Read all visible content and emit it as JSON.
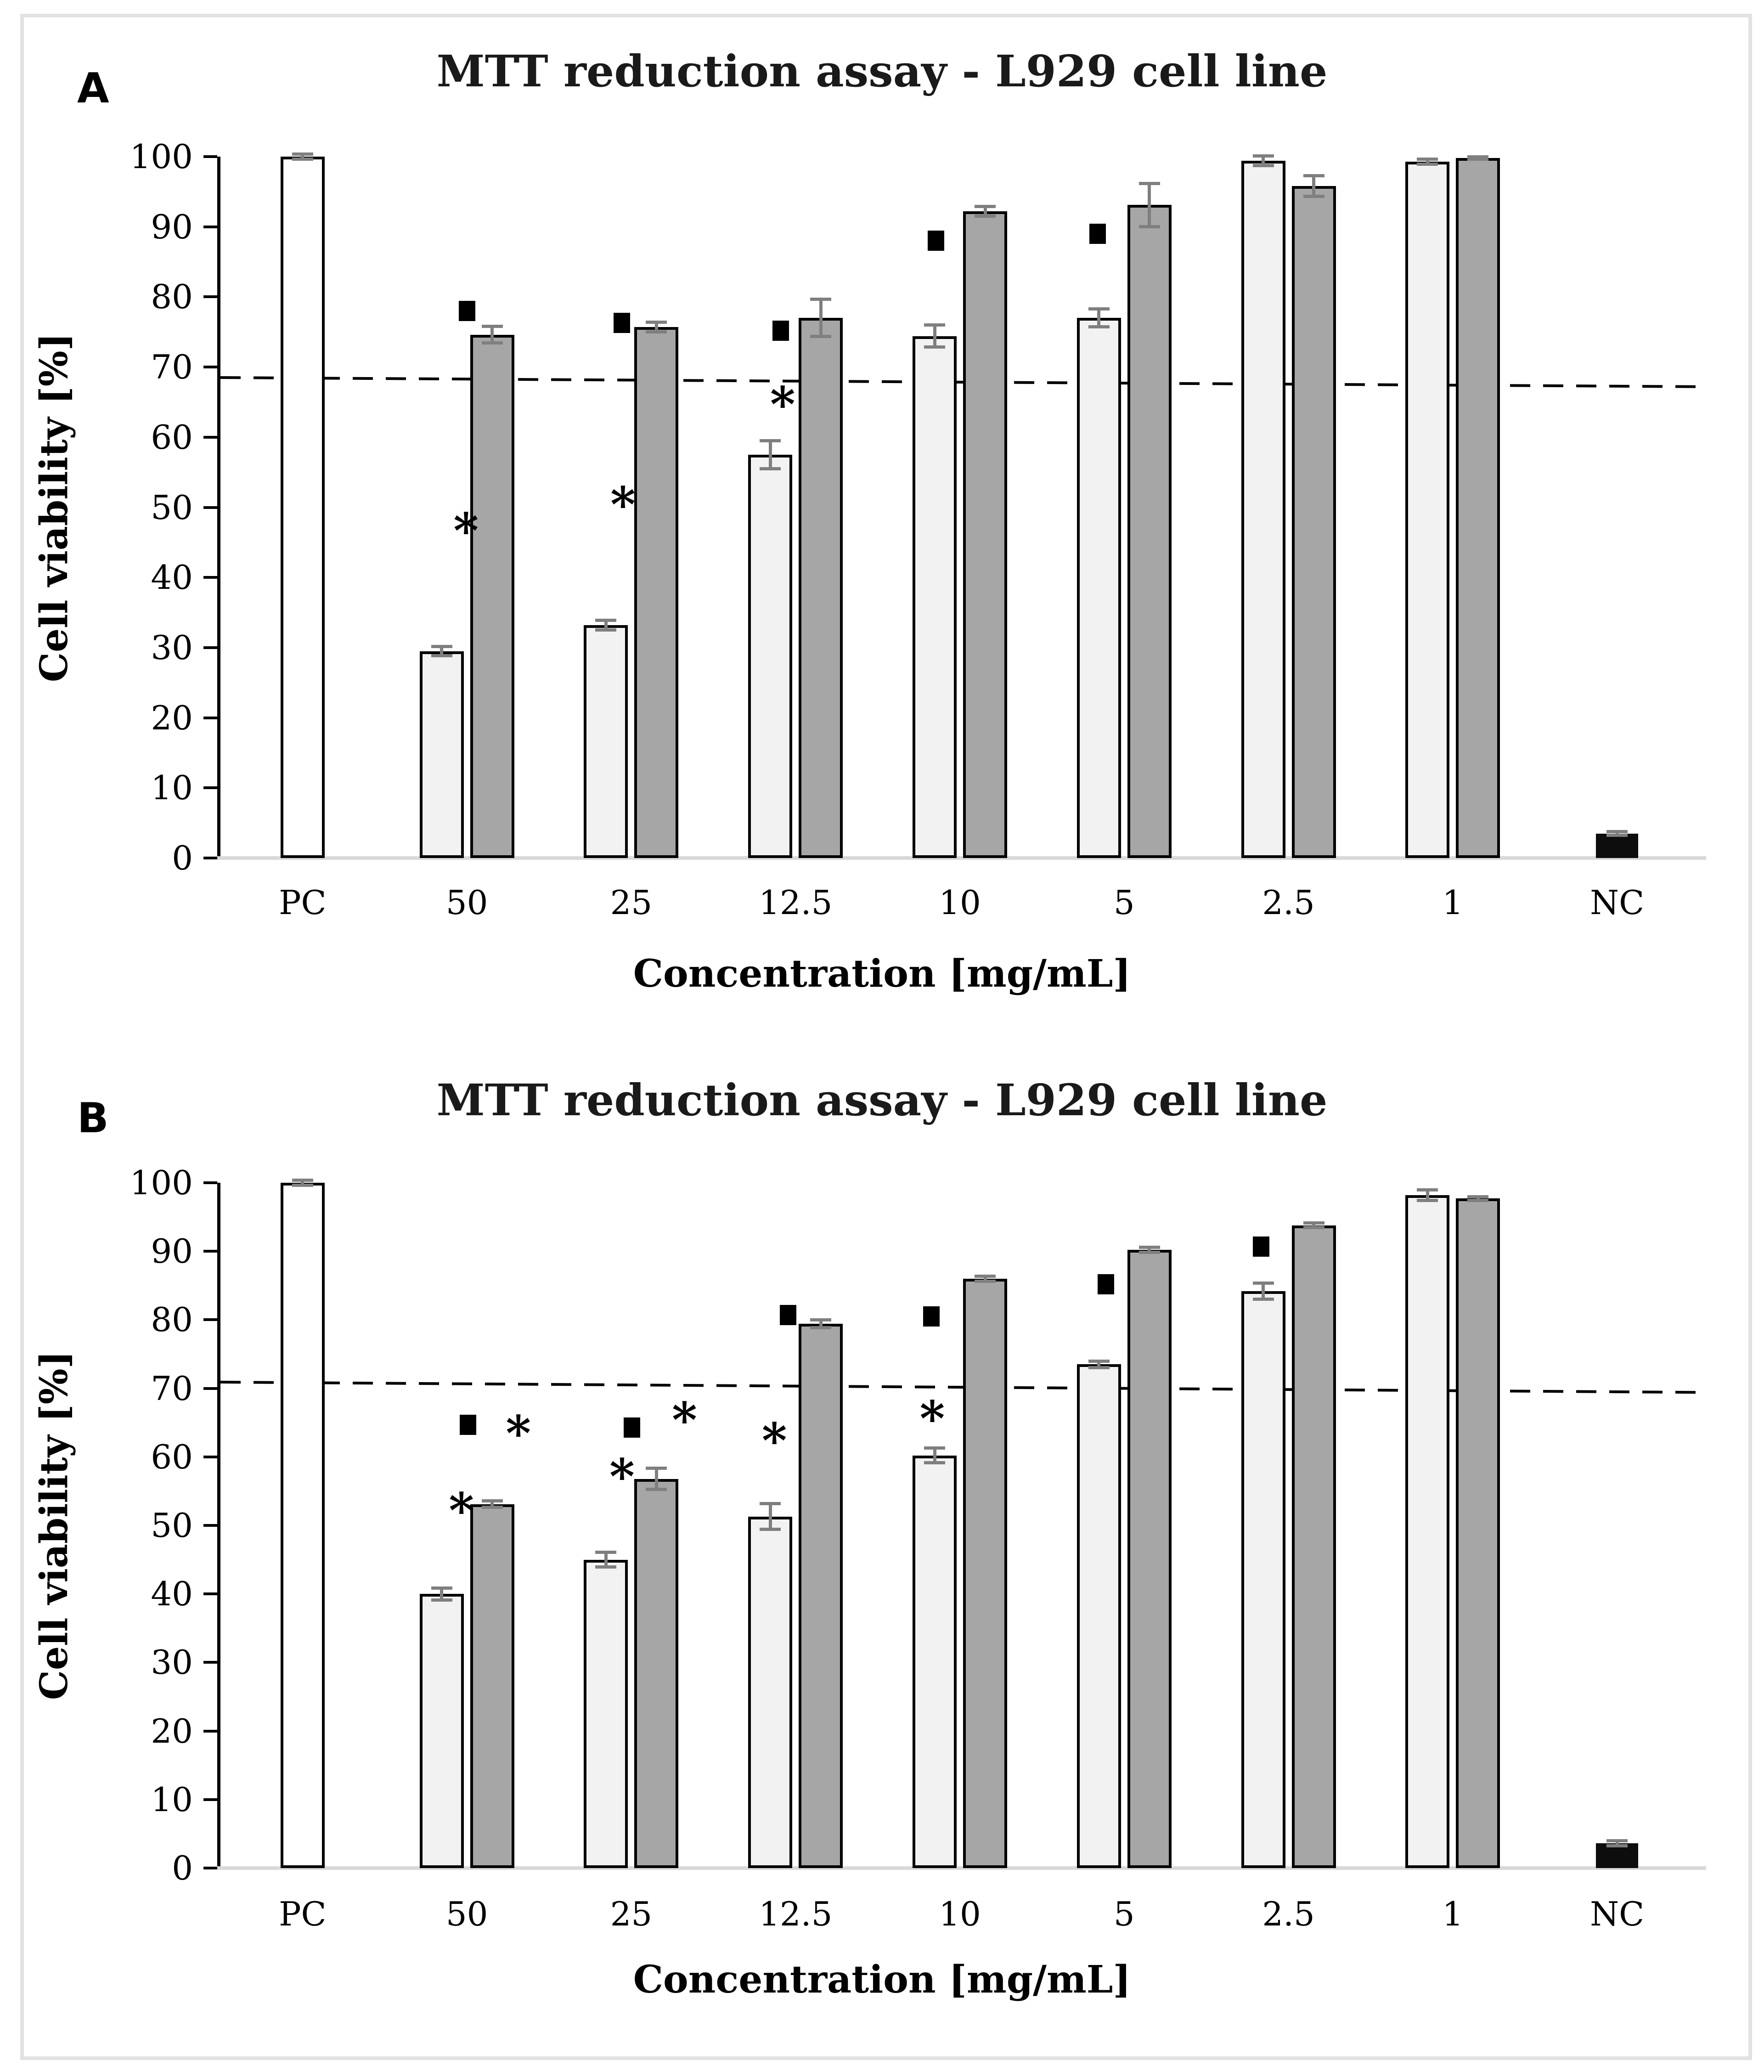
{
  "styles": {
    "light_bar": "#f2f2f2",
    "dark_bar": "#a6a6a6",
    "control_bar": "#ffffff",
    "negative_bar": "#0d0d0d",
    "bar_border": "#000000",
    "error_bar": "#7f7f7f",
    "baseline": "#d9d9d9",
    "frame_border": "#e2e2e2",
    "threshold": "#000000"
  },
  "chart_data": [
    {
      "panel_label": "A",
      "type": "bar",
      "title": "MTT reduction assay - L929 cell line",
      "ylabel": "Cell viability [%]",
      "xlabel": "Concentration [mg/mL]",
      "ylim": [
        0,
        100
      ],
      "yticks": [
        "0",
        "10",
        "20",
        "30",
        "40",
        "50",
        "60",
        "70",
        "80",
        "90",
        "100"
      ],
      "categories": [
        "PC",
        "50",
        "25",
        "12.5",
        "10",
        "5",
        "2.5",
        "1",
        "NC"
      ],
      "legend": "none",
      "grid": "off",
      "threshold_line": {
        "style": "dashed",
        "value_left": 68.5,
        "value_right": 67.2
      },
      "groups": [
        {
          "category": "PC",
          "bars": [
            {
              "series": "control",
              "value": 100,
              "error": 0.6
            }
          ],
          "annotations": []
        },
        {
          "category": "50",
          "bars": [
            {
              "series": "light",
              "value": 29.5,
              "error": 0.9
            },
            {
              "series": "dark",
              "value": 74.6,
              "error": 1.4
            }
          ],
          "annotations": [
            {
              "glyph": "*",
              "value": 47.5,
              "dx": -2
            },
            {
              "glyph": "■",
              "value": 78.0,
              "dx": 0
            }
          ]
        },
        {
          "category": "25",
          "bars": [
            {
              "series": "light",
              "value": 33.2,
              "error": 0.9
            },
            {
              "series": "dark",
              "value": 75.7,
              "error": 0.9
            }
          ],
          "annotations": [
            {
              "glyph": "*",
              "value": 51.2,
              "dx": -18
            },
            {
              "glyph": "■",
              "value": 76.3,
              "dx": -20
            }
          ]
        },
        {
          "category": "12.5",
          "bars": [
            {
              "series": "light",
              "value": 57.5,
              "error": 2.2
            },
            {
              "series": "dark",
              "value": 77.0,
              "error": 2.9
            }
          ],
          "annotations": [
            {
              "glyph": "*",
              "value": 65.5,
              "dx": -28
            },
            {
              "glyph": "■",
              "value": 75.2,
              "dx": -32
            }
          ]
        },
        {
          "category": "10",
          "bars": [
            {
              "series": "light",
              "value": 74.4,
              "error": 1.8
            },
            {
              "series": "dark",
              "value": 92.2,
              "error": 0.9
            }
          ],
          "annotations": [
            {
              "glyph": "■",
              "value": 88.0,
              "dx": -52
            }
          ]
        },
        {
          "category": "5",
          "bars": [
            {
              "series": "light",
              "value": 77.0,
              "error": 1.5
            },
            {
              "series": "dark",
              "value": 93.1,
              "error": 3.3
            }
          ],
          "annotations": [
            {
              "glyph": "■",
              "value": 89.0,
              "dx": -58
            }
          ]
        },
        {
          "category": "2.5",
          "bars": [
            {
              "series": "light",
              "value": 99.4,
              "error": 0.9
            },
            {
              "series": "dark",
              "value": 95.8,
              "error": 1.7
            }
          ],
          "annotations": []
        },
        {
          "category": "1",
          "bars": [
            {
              "series": "light",
              "value": 99.3,
              "error": 0.6
            },
            {
              "series": "dark",
              "value": 99.8,
              "error": 0.4
            }
          ],
          "annotations": []
        },
        {
          "category": "NC",
          "bars": [
            {
              "series": "negative",
              "value": 3.5,
              "error": 0.5
            }
          ],
          "annotations": []
        }
      ]
    },
    {
      "panel_label": "B",
      "type": "bar",
      "title": "MTT reduction assay - L929 cell line",
      "ylabel": "Cell viability [%]",
      "xlabel": "Concentration [mg/mL]",
      "ylim": [
        0,
        100
      ],
      "yticks": [
        "0",
        "10",
        "20",
        "30",
        "40",
        "50",
        "60",
        "70",
        "80",
        "90",
        "100"
      ],
      "categories": [
        "PC",
        "50",
        "25",
        "12.5",
        "10",
        "5",
        "2.5",
        "1",
        "NC"
      ],
      "legend": "none",
      "grid": "off",
      "threshold_line": {
        "style": "dashed",
        "value_left": 70.9,
        "value_right": 69.4
      },
      "groups": [
        {
          "category": "PC",
          "bars": [
            {
              "series": "control",
              "value": 100,
              "error": 0.6
            }
          ],
          "annotations": []
        },
        {
          "category": "50",
          "bars": [
            {
              "series": "light",
              "value": 40.0,
              "error": 1.1
            },
            {
              "series": "dark",
              "value": 53.1,
              "error": 0.7
            }
          ],
          "annotations": [
            {
              "glyph": "*",
              "value": 53.0,
              "dx": -12
            },
            {
              "glyph": "■",
              "value": 64.7,
              "dx": 2
            },
            {
              "glyph": "*",
              "value": 64.3,
              "dx": 112
            }
          ]
        },
        {
          "category": "25",
          "bars": [
            {
              "series": "light",
              "value": 45.0,
              "error": 1.3
            },
            {
              "series": "dark",
              "value": 56.8,
              "error": 1.8
            }
          ],
          "annotations": [
            {
              "glyph": "*",
              "value": 58.0,
              "dx": -20
            },
            {
              "glyph": "■",
              "value": 64.3,
              "dx": 2
            },
            {
              "glyph": "*",
              "value": 66.2,
              "dx": 116
            }
          ]
        },
        {
          "category": "12.5",
          "bars": [
            {
              "series": "light",
              "value": 51.3,
              "error": 2.1
            },
            {
              "series": "dark",
              "value": 79.4,
              "error": 0.8
            }
          ],
          "annotations": [
            {
              "glyph": "*",
              "value": 63.2,
              "dx": -46
            },
            {
              "glyph": "■",
              "value": 80.7,
              "dx": -16
            }
          ]
        },
        {
          "category": "10",
          "bars": [
            {
              "series": "light",
              "value": 60.2,
              "error": 1.3
            },
            {
              "series": "dark",
              "value": 86.0,
              "error": 0.6
            }
          ],
          "annotations": [
            {
              "glyph": "*",
              "value": 66.4,
              "dx": -60
            },
            {
              "glyph": "■",
              "value": 80.5,
              "dx": -62
            }
          ]
        },
        {
          "category": "5",
          "bars": [
            {
              "series": "light",
              "value": 73.5,
              "error": 0.7
            },
            {
              "series": "dark",
              "value": 90.2,
              "error": 0.6
            }
          ],
          "annotations": [
            {
              "glyph": "■",
              "value": 85.2,
              "dx": -40
            }
          ]
        },
        {
          "category": "2.5",
          "bars": [
            {
              "series": "light",
              "value": 84.2,
              "error": 1.4
            },
            {
              "series": "dark",
              "value": 93.8,
              "error": 0.6
            }
          ],
          "annotations": [
            {
              "glyph": "■",
              "value": 90.7,
              "dx": -60
            }
          ]
        },
        {
          "category": "1",
          "bars": [
            {
              "series": "light",
              "value": 98.2,
              "error": 1.0
            },
            {
              "series": "dark",
              "value": 97.7,
              "error": 0.5
            }
          ],
          "annotations": []
        },
        {
          "category": "NC",
          "bars": [
            {
              "series": "negative",
              "value": 3.6,
              "error": 0.6
            }
          ],
          "annotations": []
        }
      ]
    }
  ]
}
